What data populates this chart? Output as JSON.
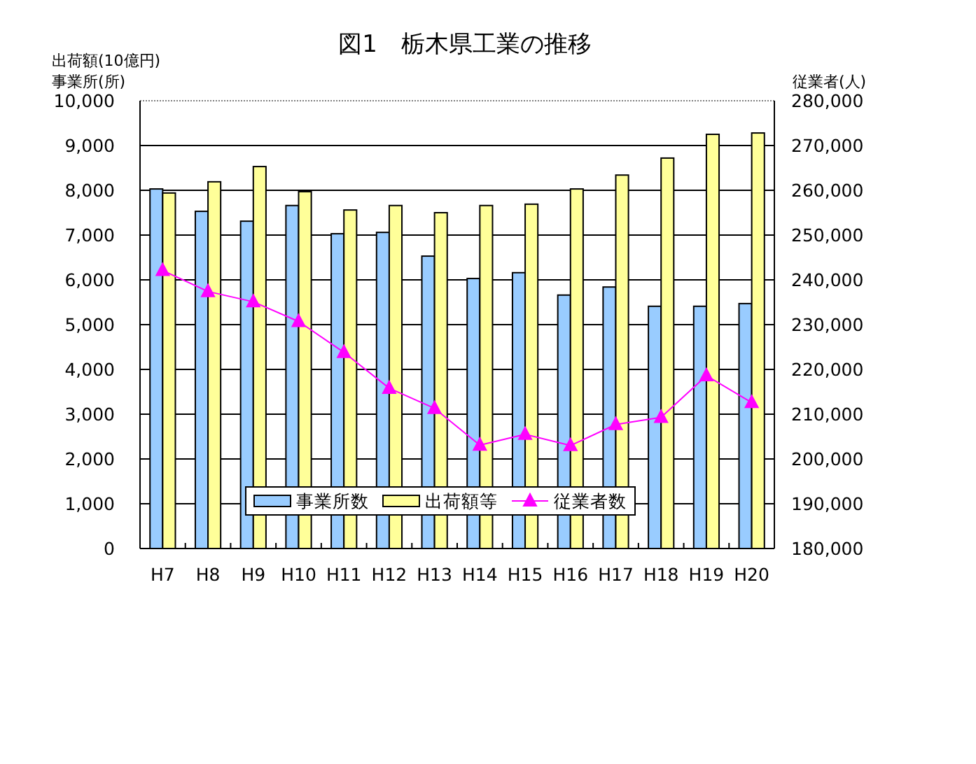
{
  "chart_data": {
    "type": "bar",
    "title": "図1　栃木県工業の推移",
    "ylabel": "出荷額(10億円)\n事業所(所)",
    "y2label": "従業者(人)",
    "categories": [
      "H7",
      "H8",
      "H9",
      "H10",
      "H11",
      "H12",
      "H13",
      "H14",
      "H15",
      "H16",
      "H17",
      "H18",
      "H19",
      "H20"
    ],
    "series": [
      {
        "name": "事業所数",
        "color": "#99ccff",
        "values": [
          8030,
          7530,
          7310,
          7660,
          7030,
          7060,
          6530,
          6030,
          6160,
          5660,
          5840,
          5410,
          5410,
          5470
        ]
      },
      {
        "name": "出荷額等",
        "color": "#ffff99",
        "values": [
          7940,
          8190,
          8530,
          7970,
          7560,
          7660,
          7500,
          7660,
          7690,
          8030,
          8340,
          8720,
          9250,
          9280
        ]
      },
      {
        "name": "従業者数",
        "type": "line",
        "axis": "y2",
        "color": "#ff00ff",
        "marker": "triangle",
        "values": [
          242100,
          237400,
          235100,
          230700,
          223800,
          215800,
          211300,
          203100,
          205500,
          203000,
          207700,
          209300,
          218600,
          212600
        ]
      }
    ],
    "ylim": [
      0,
      10000
    ],
    "yticks": [
      0,
      {
        "value": 1000,
        "label": "1,000"
      },
      {
        "value": 2000,
        "label": "2,000"
      },
      {
        "value": 3000,
        "label": "3,000"
      },
      {
        "value": 4000,
        "label": "4,000"
      },
      {
        "value": 5000,
        "label": "5,000"
      },
      {
        "value": 6000,
        "label": "6,000"
      },
      {
        "value": 7000,
        "label": "7,000"
      },
      {
        "value": 8000,
        "label": "8,000"
      },
      {
        "value": 9000,
        "label": "9,000"
      },
      {
        "value": 10000,
        "label": "10,000"
      }
    ],
    "y2lim": [
      180000,
      280000
    ],
    "y2ticks": [
      {
        "value": 180000,
        "label": "180,000"
      },
      {
        "value": 190000,
        "label": "190,000"
      },
      {
        "value": 200000,
        "label": "200,000"
      },
      {
        "value": 210000,
        "label": "210,000"
      },
      {
        "value": 220000,
        "label": "220,000"
      },
      {
        "value": 230000,
        "label": "230,000"
      },
      {
        "value": 240000,
        "label": "240,000"
      },
      {
        "value": 250000,
        "label": "250,000"
      },
      {
        "value": 260000,
        "label": "260,000"
      },
      {
        "value": 270000,
        "label": "270,000"
      },
      {
        "value": 280000,
        "label": "280,000"
      }
    ],
    "grid": "y",
    "legend": "bottom"
  }
}
